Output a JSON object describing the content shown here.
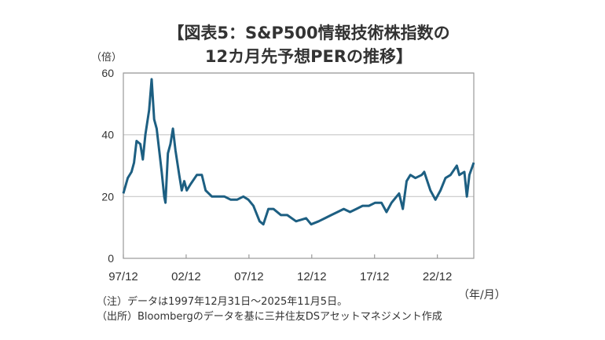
{
  "chart_data": {
    "type": "line",
    "title_line1": "【図表5：S&P500情報技術株指数の",
    "title_line2": "12カ月先予想PERの推移】",
    "ylabel": "（倍）",
    "xlabel": "（年/月）",
    "ylim": [
      0,
      60
    ],
    "yticks": [
      "0",
      "20",
      "40",
      "60"
    ],
    "xlim": [
      1997.95,
      2025.85
    ],
    "xticks": [
      {
        "x": 1997.95,
        "label": "97/12"
      },
      {
        "x": 2002.95,
        "label": "02/12"
      },
      {
        "x": 2007.95,
        "label": "07/12"
      },
      {
        "x": 2012.95,
        "label": "12/12"
      },
      {
        "x": 2017.95,
        "label": "17/12"
      },
      {
        "x": 2022.95,
        "label": "22/12"
      }
    ],
    "grid": "horizontal",
    "color": "#1d5f82",
    "series": [
      {
        "name": "12カ月先予想PER",
        "points": [
          [
            1997.95,
            21
          ],
          [
            1998.3,
            26
          ],
          [
            1998.6,
            28
          ],
          [
            1998.8,
            31
          ],
          [
            1999.0,
            38
          ],
          [
            1999.3,
            37
          ],
          [
            1999.5,
            32
          ],
          [
            1999.7,
            40
          ],
          [
            2000.0,
            48
          ],
          [
            2000.2,
            58
          ],
          [
            2000.4,
            45
          ],
          [
            2000.6,
            42
          ],
          [
            2000.8,
            35
          ],
          [
            2001.0,
            28
          ],
          [
            2001.2,
            20
          ],
          [
            2001.3,
            18
          ],
          [
            2001.5,
            34
          ],
          [
            2001.7,
            37
          ],
          [
            2001.9,
            42
          ],
          [
            2002.1,
            35
          ],
          [
            2002.4,
            27
          ],
          [
            2002.6,
            22
          ],
          [
            2002.8,
            25
          ],
          [
            2003.0,
            22
          ],
          [
            2003.3,
            24
          ],
          [
            2003.8,
            27
          ],
          [
            2004.2,
            27
          ],
          [
            2004.5,
            22
          ],
          [
            2005.0,
            20
          ],
          [
            2005.5,
            20
          ],
          [
            2006.0,
            20
          ],
          [
            2006.5,
            19
          ],
          [
            2007.0,
            19
          ],
          [
            2007.5,
            20
          ],
          [
            2007.9,
            19
          ],
          [
            2008.3,
            17
          ],
          [
            2008.8,
            12
          ],
          [
            2009.1,
            11
          ],
          [
            2009.5,
            16
          ],
          [
            2009.9,
            16
          ],
          [
            2010.5,
            14
          ],
          [
            2011.0,
            14
          ],
          [
            2011.7,
            12
          ],
          [
            2012.5,
            13
          ],
          [
            2012.9,
            11
          ],
          [
            2013.5,
            12
          ],
          [
            2014.0,
            13
          ],
          [
            2014.5,
            14
          ],
          [
            2015.0,
            15
          ],
          [
            2015.5,
            16
          ],
          [
            2016.0,
            15
          ],
          [
            2016.5,
            16
          ],
          [
            2017.0,
            17
          ],
          [
            2017.5,
            17
          ],
          [
            2018.0,
            18
          ],
          [
            2018.5,
            18
          ],
          [
            2018.9,
            15
          ],
          [
            2019.3,
            18
          ],
          [
            2019.9,
            21
          ],
          [
            2020.2,
            16
          ],
          [
            2020.5,
            25
          ],
          [
            2020.8,
            27
          ],
          [
            2021.2,
            26
          ],
          [
            2021.7,
            27
          ],
          [
            2021.9,
            28
          ],
          [
            2022.4,
            22
          ],
          [
            2022.8,
            19
          ],
          [
            2023.2,
            22
          ],
          [
            2023.6,
            26
          ],
          [
            2024.0,
            27
          ],
          [
            2024.5,
            30
          ],
          [
            2024.7,
            27
          ],
          [
            2025.1,
            28
          ],
          [
            2025.3,
            20
          ],
          [
            2025.5,
            27
          ],
          [
            2025.85,
            31
          ]
        ]
      }
    ],
    "notes": [
      "（注）データは1997年12月31日～2025年11月5日。",
      "（出所）Bloombergのデータを基に三井住友DSアセットマネジメント作成"
    ]
  }
}
